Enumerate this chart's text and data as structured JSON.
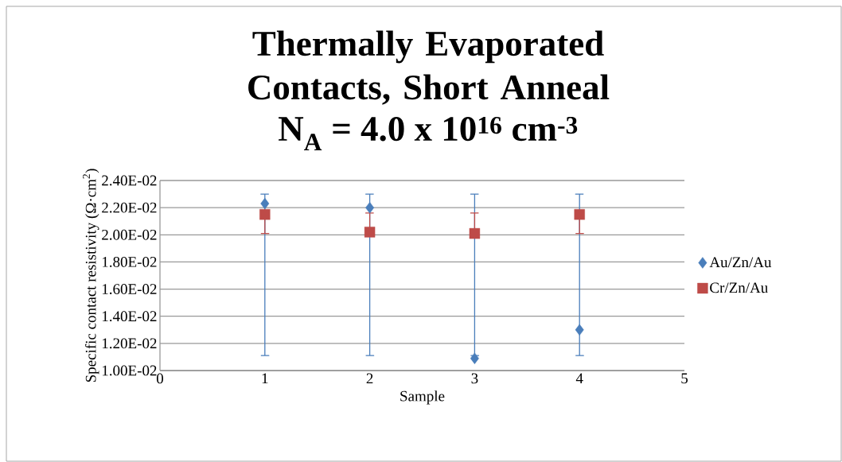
{
  "chart_data": {
    "type": "scatter",
    "title": "Thermally Evaporated Contacts, Short Anneal",
    "subtitle": "N$_{A}$ = 4.0 x 10$^{16}$ cm$^{-3}$",
    "xlabel": "Sample",
    "ylabel": "Specific contact resistivity (Ω·cm$^{2}$)",
    "x": [
      1,
      2,
      3,
      4
    ],
    "series": [
      {
        "name": "Au/Zn/Au",
        "color": "#4a7ebb",
        "marker": "diamond",
        "values": [
          0.0223,
          0.022,
          0.0109,
          0.013
        ],
        "errors": [
          [
            0.0111,
            0.023
          ],
          [
            0.0111,
            0.023
          ],
          [
            0.0111,
            0.023
          ],
          [
            0.0111,
            0.023
          ]
        ]
      },
      {
        "name": "Cr/Zn/Au",
        "color": "#be4b48",
        "marker": "square",
        "values": [
          0.0215,
          0.0202,
          0.0201,
          0.0215
        ],
        "errors": [
          [
            0.0201,
            0.0215
          ],
          [
            0.0202,
            0.0216
          ],
          [
            0.0201,
            0.0216
          ],
          [
            0.0201,
            0.0215
          ]
        ]
      }
    ],
    "xlim": [
      0,
      5
    ],
    "xticks": [
      0,
      1,
      2,
      3,
      4,
      5
    ],
    "ylim": [
      0.01,
      0.024
    ],
    "yticks": [
      {
        "value": 0.01,
        "label": "1.00E-02"
      },
      {
        "value": 0.012,
        "label": "1.20E-02"
      },
      {
        "value": 0.014,
        "label": "1.40E-02"
      },
      {
        "value": 0.016,
        "label": "1.60E-02"
      },
      {
        "value": 0.018,
        "label": "1.80E-02"
      },
      {
        "value": 0.02,
        "label": "2.00E-02"
      },
      {
        "value": 0.022,
        "label": "2.20E-02"
      },
      {
        "value": 0.024,
        "label": "2.40E-02"
      }
    ],
    "grid": "y",
    "legend": "right"
  }
}
